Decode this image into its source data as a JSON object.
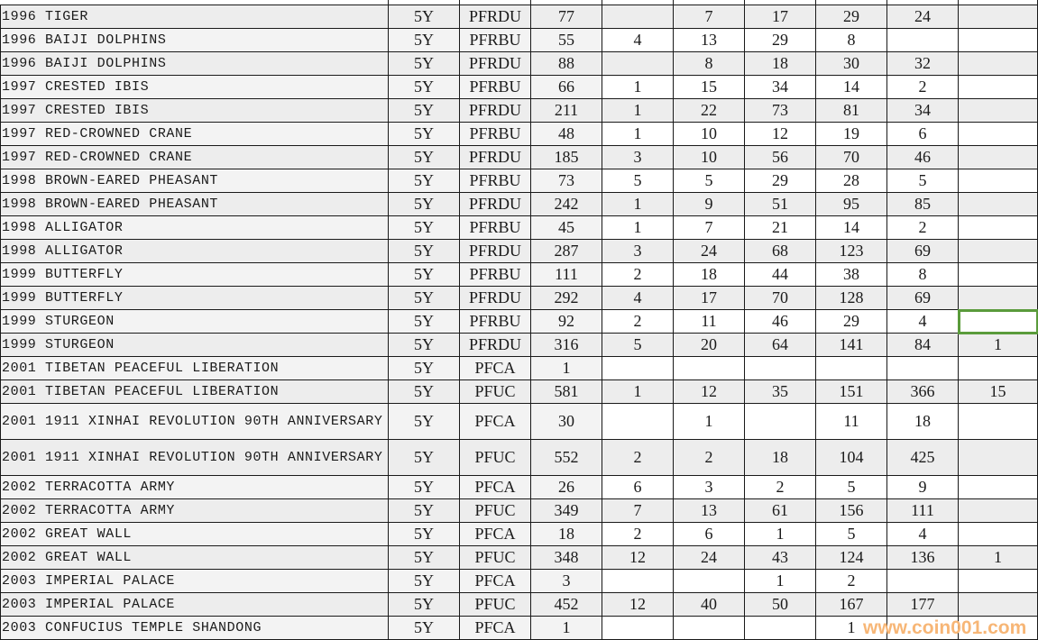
{
  "rows": [
    [
      "1996 TIGER",
      "5Y",
      "PFRDU",
      "77",
      "",
      "7",
      "17",
      "29",
      "24",
      ""
    ],
    [
      "1996 BAIJI DOLPHINS",
      "5Y",
      "PFRBU",
      "55",
      "4",
      "13",
      "29",
      "8",
      "",
      ""
    ],
    [
      "1996 BAIJI DOLPHINS",
      "5Y",
      "PFRDU",
      "88",
      "",
      "8",
      "18",
      "30",
      "32",
      ""
    ],
    [
      "1997 CRESTED IBIS",
      "5Y",
      "PFRBU",
      "66",
      "1",
      "15",
      "34",
      "14",
      "2",
      ""
    ],
    [
      "1997 CRESTED IBIS",
      "5Y",
      "PFRDU",
      "211",
      "1",
      "22",
      "73",
      "81",
      "34",
      ""
    ],
    [
      "1997 RED-CROWNED CRANE",
      "5Y",
      "PFRBU",
      "48",
      "1",
      "10",
      "12",
      "19",
      "6",
      ""
    ],
    [
      "1997 RED-CROWNED CRANE",
      "5Y",
      "PFRDU",
      "185",
      "3",
      "10",
      "56",
      "70",
      "46",
      ""
    ],
    [
      "1998 BROWN-EARED PHEASANT",
      "5Y",
      "PFRBU",
      "73",
      "5",
      "5",
      "29",
      "28",
      "5",
      ""
    ],
    [
      "1998 BROWN-EARED PHEASANT",
      "5Y",
      "PFRDU",
      "242",
      "1",
      "9",
      "51",
      "95",
      "85",
      ""
    ],
    [
      "1998 ALLIGATOR",
      "5Y",
      "PFRBU",
      "45",
      "1",
      "7",
      "21",
      "14",
      "2",
      ""
    ],
    [
      "1998 ALLIGATOR",
      "5Y",
      "PFRDU",
      "287",
      "3",
      "24",
      "68",
      "123",
      "69",
      ""
    ],
    [
      "1999 BUTTERFLY",
      "5Y",
      "PFRBU",
      "111",
      "2",
      "18",
      "44",
      "38",
      "8",
      ""
    ],
    [
      "1999 BUTTERFLY",
      "5Y",
      "PFRDU",
      "292",
      "4",
      "17",
      "70",
      "128",
      "69",
      ""
    ],
    [
      "1999 STURGEON",
      "5Y",
      "PFRBU",
      "92",
      "2",
      "11",
      "46",
      "29",
      "4",
      ""
    ],
    [
      "1999 STURGEON",
      "5Y",
      "PFRDU",
      "316",
      "5",
      "20",
      "64",
      "141",
      "84",
      "1"
    ],
    [
      "2001 TIBETAN PEACEFUL LIBERATION",
      "5Y",
      "PFCA",
      "1",
      "",
      "",
      "",
      "",
      "",
      ""
    ],
    [
      "2001 TIBETAN PEACEFUL LIBERATION",
      "5Y",
      "PFUC",
      "581",
      "1",
      "12",
      "35",
      "151",
      "366",
      "15"
    ],
    [
      "2001 1911 XINHAI REVOLUTION 90TH ANNIVERSARY",
      "5Y",
      "PFCA",
      "30",
      "",
      "1",
      "",
      "11",
      "18",
      ""
    ],
    [
      "2001 1911 XINHAI REVOLUTION 90TH ANNIVERSARY",
      "5Y",
      "PFUC",
      "552",
      "2",
      "2",
      "18",
      "104",
      "425",
      ""
    ],
    [
      "2002 TERRACOTTA ARMY",
      "5Y",
      "PFCA",
      "26",
      "6",
      "3",
      "2",
      "5",
      "9",
      ""
    ],
    [
      "2002 TERRACOTTA ARMY",
      "5Y",
      "PFUC",
      "349",
      "7",
      "13",
      "61",
      "156",
      "111",
      ""
    ],
    [
      "2002 GREAT WALL",
      "5Y",
      "PFCA",
      "18",
      "2",
      "6",
      "1",
      "5",
      "4",
      ""
    ],
    [
      "2002 GREAT WALL",
      "5Y",
      "PFUC",
      "348",
      "12",
      "24",
      "43",
      "124",
      "136",
      "1"
    ],
    [
      "2003 IMPERIAL PALACE",
      "5Y",
      "PFCA",
      "3",
      "",
      "",
      "1",
      "2",
      "",
      ""
    ],
    [
      "2003 IMPERIAL PALACE",
      "5Y",
      "PFUC",
      "452",
      "12",
      "40",
      "50",
      "167",
      "177",
      ""
    ],
    [
      "2003 CONFUCIUS TEMPLE SHANDONG",
      "5Y",
      "PFCA",
      "1",
      "",
      "",
      "",
      "1",
      "",
      ""
    ]
  ],
  "selected_cell": {
    "row": 13,
    "col": 9
  },
  "colors": {
    "selection": "#5a9b3b",
    "watermark": "#f7b676"
  },
  "watermark": "www.coin001.com"
}
